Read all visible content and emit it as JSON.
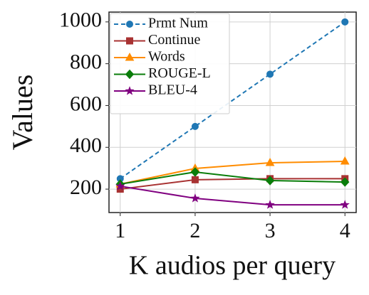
{
  "chart_data": {
    "type": "line",
    "x_label": "K audios per query",
    "y_label": "Values",
    "x": [
      1,
      2,
      3,
      4
    ],
    "xlim": [
      0.85,
      4.15
    ],
    "xticks": [
      1,
      2,
      3,
      4
    ],
    "ylim": [
      88,
      1047
    ],
    "yticks": [
      200,
      400,
      600,
      800,
      1000
    ],
    "grid": true,
    "legend": "upper left",
    "series": [
      {
        "name": "Prmt Num",
        "color": "#1f77b4",
        "marker": "circle",
        "dash": true,
        "values": [
          250,
          500,
          750,
          1000
        ]
      },
      {
        "name": "Continue",
        "color": "#a83232",
        "marker": "square",
        "values": [
          200,
          245,
          250,
          250
        ]
      },
      {
        "name": "Words",
        "color": "#ff8c00",
        "marker": "triangle",
        "values": [
          224,
          299,
          326,
          333
        ]
      },
      {
        "name": "ROUGE-L",
        "color": "#0a7d0a",
        "marker": "diamond",
        "values": [
          224,
          282,
          241,
          234
        ]
      },
      {
        "name": "BLEU-4",
        "color": "#800080",
        "marker": "star",
        "values": [
          214,
          156,
          125,
          125
        ]
      }
    ]
  }
}
